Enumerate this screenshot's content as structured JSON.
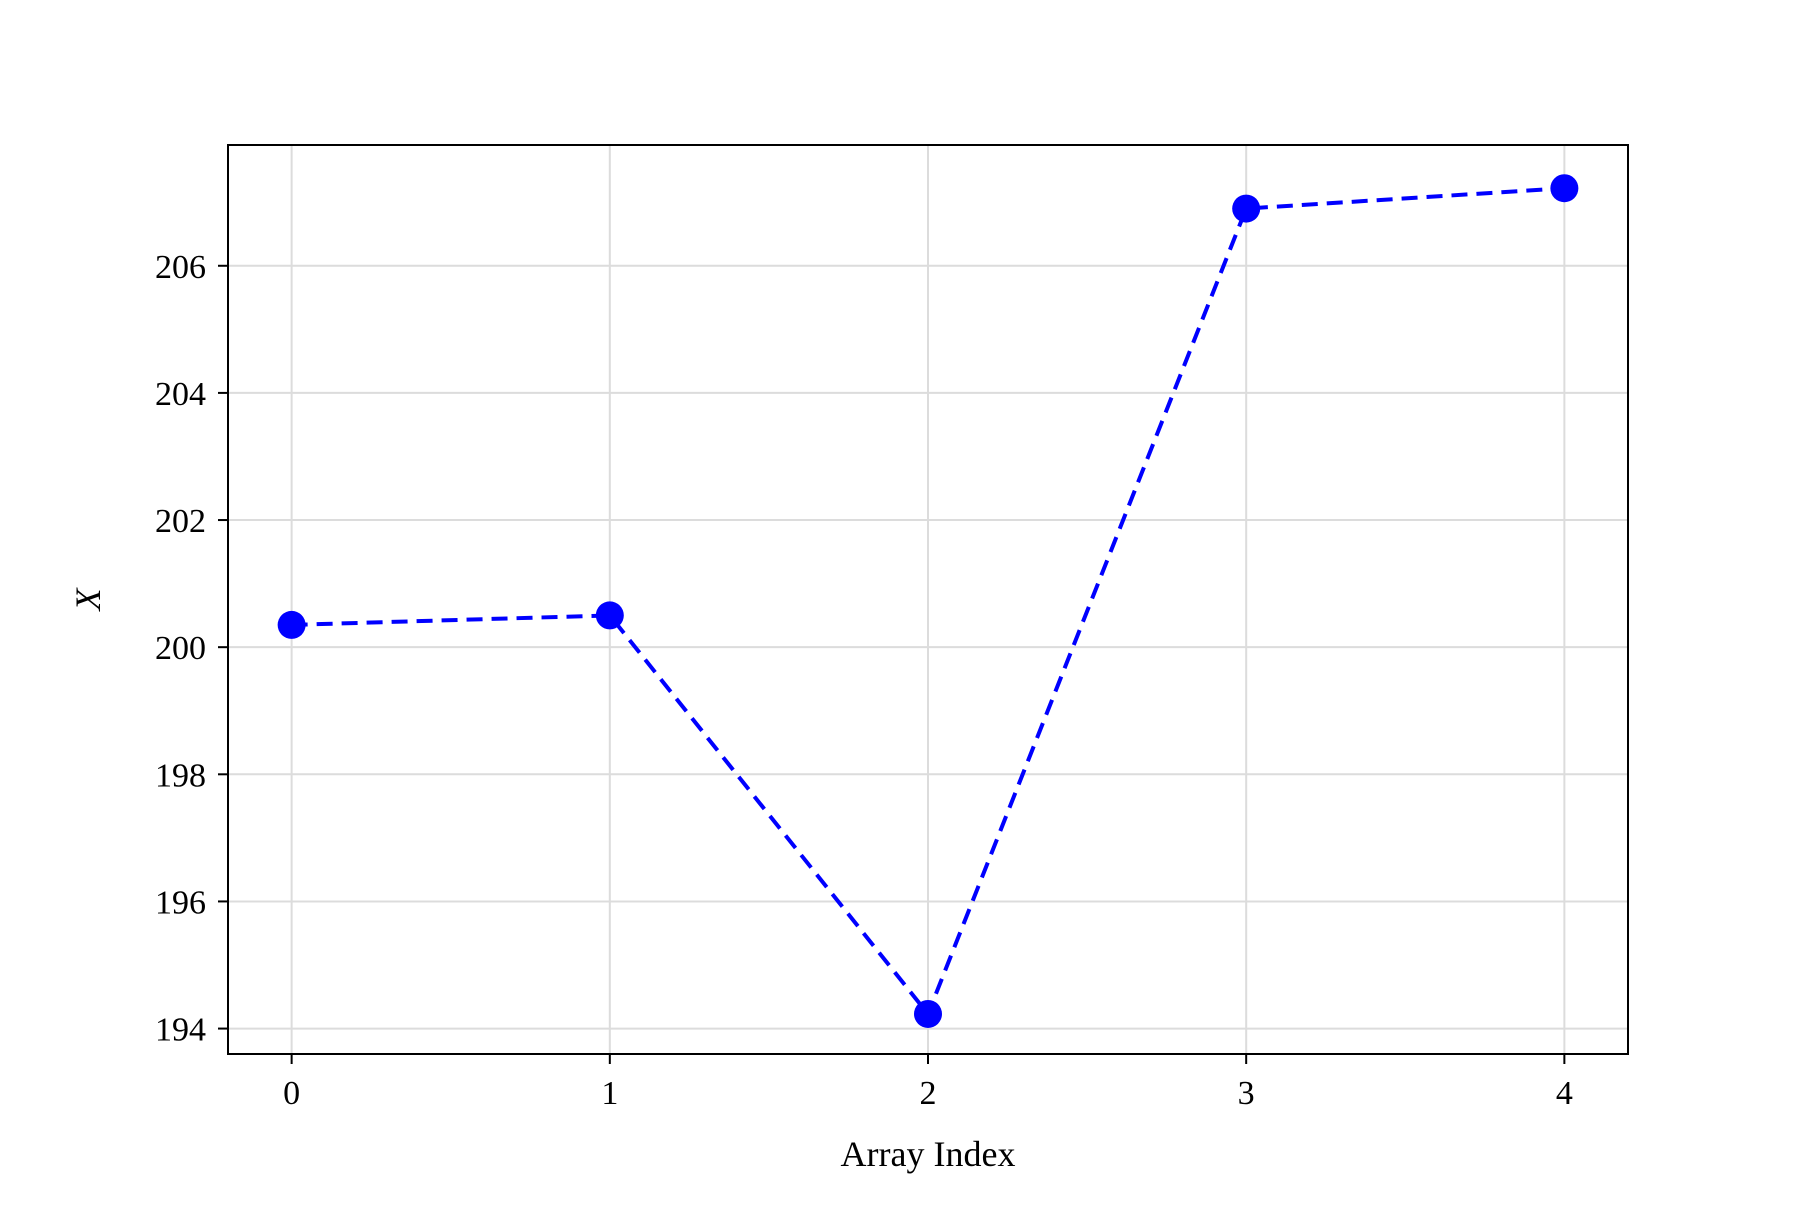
{
  "chart_data": {
    "type": "line",
    "title": "",
    "xlabel": "Array Index",
    "ylabel": "X",
    "x": [
      0,
      1,
      2,
      3,
      4
    ],
    "series": [
      {
        "values": [
          200.35,
          200.5,
          194.23,
          206.9,
          207.22
        ],
        "color": "#0000ff",
        "line_style": "dashed",
        "marker": "circle"
      }
    ],
    "xlim": [
      -0.2,
      4.2
    ],
    "ylim": [
      193.6,
      207.9
    ],
    "xticks": [
      0,
      1,
      2,
      3,
      4
    ],
    "xtick_labels": [
      "0",
      "1",
      "2",
      "3",
      "4"
    ],
    "yticks": [
      194,
      196,
      198,
      200,
      202,
      204,
      206
    ],
    "ytick_labels": [
      "194",
      "196",
      "198",
      "200",
      "202",
      "204",
      "206"
    ],
    "grid": true,
    "legend": "none"
  }
}
